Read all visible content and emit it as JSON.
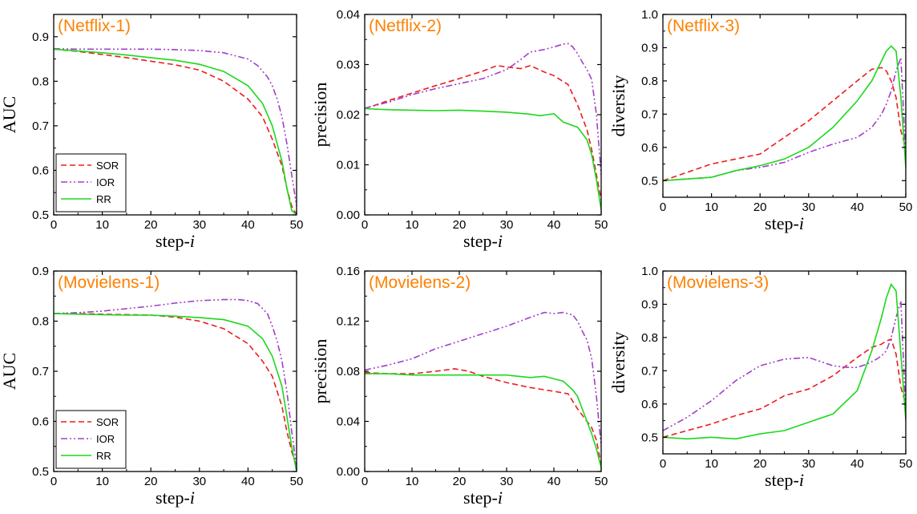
{
  "chart_data": [
    {
      "type": "line",
      "title": "(Netflix-1)",
      "xlabel": "step-",
      "xlabel_italic": "i",
      "ylabel": "AUC",
      "xlim": [
        0,
        50
      ],
      "ylim": [
        0.5,
        0.95
      ],
      "xticks": [
        "0",
        "10",
        "20",
        "30",
        "40",
        "50"
      ],
      "yticks": [
        "0.5",
        "0.6",
        "0.7",
        "0.8",
        "0.9"
      ],
      "legend": true,
      "legend_position": "bottom-left",
      "series": [
        {
          "name": "SOR",
          "x": [
            0,
            5,
            10,
            15,
            20,
            25,
            30,
            35,
            40,
            43,
            45,
            47,
            48,
            49,
            50
          ],
          "y": [
            0.872,
            0.867,
            0.86,
            0.853,
            0.845,
            0.837,
            0.825,
            0.8,
            0.76,
            0.72,
            0.67,
            0.61,
            0.56,
            0.52,
            0.5
          ]
        },
        {
          "name": "IOR",
          "x": [
            0,
            5,
            10,
            15,
            20,
            25,
            30,
            35,
            40,
            42,
            44,
            45,
            46,
            47,
            48,
            49,
            50
          ],
          "y": [
            0.873,
            0.872,
            0.872,
            0.872,
            0.872,
            0.871,
            0.869,
            0.864,
            0.85,
            0.835,
            0.81,
            0.79,
            0.76,
            0.72,
            0.66,
            0.59,
            0.52
          ]
        },
        {
          "name": "RR",
          "x": [
            0,
            5,
            10,
            15,
            20,
            25,
            30,
            35,
            40,
            43,
            45,
            47,
            48,
            49,
            50
          ],
          "y": [
            0.872,
            0.868,
            0.864,
            0.859,
            0.853,
            0.847,
            0.838,
            0.822,
            0.79,
            0.75,
            0.7,
            0.62,
            0.56,
            0.51,
            0.5
          ]
        }
      ]
    },
    {
      "type": "line",
      "title": "(Netflix-2)",
      "xlabel": "step-",
      "xlabel_italic": "i",
      "ylabel": "precision",
      "xlim": [
        0,
        50
      ],
      "ylim": [
        0,
        0.04
      ],
      "xticks": [
        "0",
        "10",
        "20",
        "30",
        "40",
        "50"
      ],
      "yticks": [
        "0.00",
        "0.01",
        "0.02",
        "0.03",
        "0.04"
      ],
      "legend": false,
      "series": [
        {
          "name": "SOR",
          "x": [
            0,
            5,
            10,
            15,
            20,
            25,
            28,
            30,
            33,
            35,
            38,
            40,
            43,
            45,
            47,
            48,
            49,
            50
          ],
          "y": [
            0.0212,
            0.0228,
            0.0243,
            0.0258,
            0.0272,
            0.0287,
            0.0298,
            0.0295,
            0.0292,
            0.0298,
            0.0285,
            0.0278,
            0.026,
            0.022,
            0.017,
            0.013,
            0.008,
            0.003
          ]
        },
        {
          "name": "IOR",
          "x": [
            0,
            5,
            10,
            15,
            20,
            25,
            30,
            33,
            35,
            38,
            40,
            42,
            43,
            44,
            45,
            46,
            47,
            48,
            49,
            50
          ],
          "y": [
            0.0213,
            0.0225,
            0.024,
            0.0252,
            0.0262,
            0.0272,
            0.029,
            0.031,
            0.0325,
            0.033,
            0.0335,
            0.0341,
            0.0342,
            0.0335,
            0.0322,
            0.0305,
            0.029,
            0.027,
            0.02,
            0.008
          ]
        },
        {
          "name": "RR",
          "x": [
            0,
            5,
            10,
            15,
            20,
            25,
            30,
            35,
            37,
            40,
            42,
            45,
            47,
            48,
            49,
            50
          ],
          "y": [
            0.0212,
            0.021,
            0.0209,
            0.0208,
            0.0209,
            0.0207,
            0.0205,
            0.0201,
            0.0198,
            0.0202,
            0.0185,
            0.0175,
            0.015,
            0.012,
            0.007,
            0.001
          ]
        }
      ]
    },
    {
      "type": "line",
      "title": "(Netflix-3)",
      "xlabel": "step-",
      "xlabel_italic": "i",
      "ylabel": "diversity",
      "xlim": [
        0,
        50
      ],
      "ylim": [
        0.45,
        1.0
      ],
      "xticks": [
        "0",
        "10",
        "20",
        "30",
        "40",
        "50"
      ],
      "yticks": [
        "0.5",
        "0.6",
        "0.7",
        "0.8",
        "0.9",
        "1.0"
      ],
      "legend": false,
      "series": [
        {
          "name": "SOR",
          "x": [
            0,
            5,
            10,
            15,
            20,
            25,
            30,
            35,
            40,
            43,
            45,
            46,
            47,
            48,
            49,
            50
          ],
          "y": [
            0.5,
            0.525,
            0.55,
            0.565,
            0.58,
            0.63,
            0.68,
            0.74,
            0.8,
            0.835,
            0.84,
            0.83,
            0.8,
            0.75,
            0.65,
            0.6
          ]
        },
        {
          "name": "IOR",
          "x": [
            0,
            5,
            10,
            15,
            20,
            25,
            30,
            35,
            40,
            43,
            45,
            46,
            47,
            48,
            49,
            50
          ],
          "y": [
            0.5,
            0.505,
            0.51,
            0.53,
            0.54,
            0.555,
            0.585,
            0.61,
            0.63,
            0.66,
            0.7,
            0.73,
            0.77,
            0.83,
            0.87,
            0.57
          ]
        },
        {
          "name": "RR",
          "x": [
            0,
            5,
            10,
            15,
            20,
            25,
            30,
            35,
            40,
            43,
            45,
            46,
            47,
            48,
            49,
            50
          ],
          "y": [
            0.5,
            0.505,
            0.51,
            0.53,
            0.545,
            0.565,
            0.6,
            0.66,
            0.74,
            0.8,
            0.86,
            0.89,
            0.905,
            0.89,
            0.75,
            0.54
          ]
        }
      ]
    },
    {
      "type": "line",
      "title": "(Movielens-1)",
      "xlabel": "step-",
      "xlabel_italic": "i",
      "ylabel": "AUC",
      "xlim": [
        0,
        50
      ],
      "ylim": [
        0.5,
        0.9
      ],
      "xticks": [
        "0",
        "10",
        "20",
        "30",
        "40",
        "50"
      ],
      "yticks": [
        "0.5",
        "0.6",
        "0.7",
        "0.8",
        "0.9"
      ],
      "legend": true,
      "legend_position": "bottom-left",
      "series": [
        {
          "name": "SOR",
          "x": [
            0,
            5,
            10,
            15,
            20,
            25,
            30,
            35,
            40,
            43,
            45,
            47,
            48,
            49,
            50
          ],
          "y": [
            0.815,
            0.815,
            0.814,
            0.813,
            0.812,
            0.808,
            0.8,
            0.785,
            0.755,
            0.72,
            0.69,
            0.63,
            0.58,
            0.54,
            0.51
          ]
        },
        {
          "name": "IOR",
          "x": [
            0,
            5,
            10,
            15,
            20,
            25,
            30,
            35,
            38,
            40,
            42,
            44,
            45,
            46,
            47,
            48,
            49,
            50
          ],
          "y": [
            0.815,
            0.817,
            0.82,
            0.825,
            0.83,
            0.836,
            0.841,
            0.843,
            0.843,
            0.841,
            0.835,
            0.815,
            0.79,
            0.76,
            0.72,
            0.66,
            0.58,
            0.51
          ]
        },
        {
          "name": "RR",
          "x": [
            0,
            5,
            10,
            15,
            20,
            25,
            30,
            35,
            40,
            43,
            45,
            47,
            48,
            49,
            50
          ],
          "y": [
            0.815,
            0.814,
            0.813,
            0.812,
            0.812,
            0.81,
            0.807,
            0.803,
            0.79,
            0.765,
            0.73,
            0.67,
            0.61,
            0.55,
            0.5
          ]
        }
      ]
    },
    {
      "type": "line",
      "title": "(Movielens-2)",
      "xlabel": "step-",
      "xlabel_italic": "i",
      "ylabel": "precision",
      "xlim": [
        0,
        50
      ],
      "ylim": [
        0,
        0.16
      ],
      "xticks": [
        "0",
        "10",
        "20",
        "30",
        "40",
        "50"
      ],
      "yticks": [
        "0.00",
        "0.04",
        "0.08",
        "0.12",
        "0.16"
      ],
      "legend": false,
      "series": [
        {
          "name": "SOR",
          "x": [
            0,
            5,
            10,
            15,
            19,
            22,
            25,
            30,
            35,
            40,
            43,
            45,
            46,
            47,
            48,
            49,
            50
          ],
          "y": [
            0.079,
            0.078,
            0.078,
            0.08,
            0.082,
            0.08,
            0.076,
            0.071,
            0.067,
            0.064,
            0.062,
            0.05,
            0.045,
            0.04,
            0.035,
            0.025,
            0.005
          ]
        },
        {
          "name": "IOR",
          "x": [
            0,
            5,
            10,
            15,
            20,
            25,
            30,
            35,
            38,
            40,
            42,
            44,
            45,
            46,
            47,
            48,
            49,
            50
          ],
          "y": [
            0.081,
            0.085,
            0.09,
            0.098,
            0.104,
            0.11,
            0.116,
            0.123,
            0.127,
            0.126,
            0.127,
            0.125,
            0.12,
            0.112,
            0.105,
            0.09,
            0.06,
            0.02
          ]
        },
        {
          "name": "RR",
          "x": [
            0,
            5,
            10,
            15,
            20,
            25,
            30,
            35,
            38,
            40,
            42,
            44,
            45,
            46,
            47,
            48,
            49,
            50
          ],
          "y": [
            0.078,
            0.078,
            0.077,
            0.077,
            0.077,
            0.077,
            0.077,
            0.075,
            0.076,
            0.074,
            0.072,
            0.065,
            0.06,
            0.05,
            0.04,
            0.03,
            0.018,
            0.003
          ]
        }
      ]
    },
    {
      "type": "line",
      "title": "(Movielens-3)",
      "xlabel": "step-",
      "xlabel_italic": "i",
      "ylabel": "diversity",
      "xlim": [
        0,
        50
      ],
      "ylim": [
        0.45,
        1.0
      ],
      "xticks": [
        "0",
        "10",
        "20",
        "30",
        "40",
        "50"
      ],
      "yticks": [
        "0.5",
        "0.6",
        "0.7",
        "0.8",
        "0.9",
        "1.0"
      ],
      "legend": false,
      "series": [
        {
          "name": "SOR",
          "x": [
            0,
            5,
            10,
            15,
            20,
            22,
            25,
            30,
            35,
            40,
            43,
            45,
            46,
            47,
            48,
            49,
            50
          ],
          "y": [
            0.5,
            0.52,
            0.54,
            0.565,
            0.585,
            0.6,
            0.625,
            0.645,
            0.685,
            0.74,
            0.77,
            0.78,
            0.79,
            0.795,
            0.75,
            0.65,
            0.6
          ]
        },
        {
          "name": "IOR",
          "x": [
            0,
            5,
            10,
            15,
            20,
            25,
            30,
            35,
            38,
            40,
            42,
            44,
            45,
            46,
            47,
            48,
            49,
            50
          ],
          "y": [
            0.52,
            0.56,
            0.61,
            0.67,
            0.715,
            0.735,
            0.74,
            0.715,
            0.71,
            0.71,
            0.72,
            0.735,
            0.745,
            0.76,
            0.8,
            0.86,
            0.91,
            0.57
          ]
        },
        {
          "name": "RR",
          "x": [
            0,
            5,
            10,
            15,
            20,
            25,
            30,
            35,
            40,
            43,
            45,
            46,
            47,
            48,
            49,
            50
          ],
          "y": [
            0.5,
            0.495,
            0.5,
            0.495,
            0.51,
            0.52,
            0.545,
            0.57,
            0.64,
            0.76,
            0.86,
            0.92,
            0.96,
            0.94,
            0.75,
            0.55
          ]
        }
      ]
    }
  ],
  "style": {
    "series_colors": {
      "SOR": "#ee1c1c",
      "IOR": "#a040c8",
      "RR": "#1cd81c"
    },
    "series_dash": {
      "SOR": "7,4",
      "IOR": "8,3,2,3,2,3",
      "RR": ""
    },
    "title_color": "#ff8000"
  }
}
